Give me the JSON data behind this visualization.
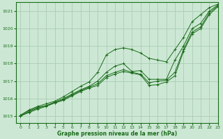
{
  "title": "Graphe pression niveau de la mer (hPa)",
  "bg_color": "#cce8d4",
  "grid_color": "#aaccb4",
  "line_color": "#1a6b1a",
  "xlim": [
    -0.5,
    23
  ],
  "ylim": [
    1014.6,
    1021.5
  ],
  "yticks": [
    1015,
    1016,
    1017,
    1018,
    1019,
    1020,
    1021
  ],
  "xticks": [
    0,
    1,
    2,
    3,
    4,
    5,
    6,
    7,
    8,
    9,
    10,
    11,
    12,
    13,
    14,
    15,
    16,
    17,
    18,
    19,
    20,
    21,
    22,
    23
  ],
  "series": {
    "line_max": {
      "x": [
        0,
        1,
        2,
        3,
        4,
        5,
        6,
        7,
        8,
        9,
        10,
        11,
        12,
        13,
        14,
        15,
        16,
        17,
        18,
        19,
        20,
        21,
        22,
        23
      ],
      "y": [
        1015.05,
        1015.35,
        1015.55,
        1015.7,
        1015.85,
        1016.1,
        1016.4,
        1016.7,
        1016.95,
        1017.5,
        1018.5,
        1018.8,
        1018.9,
        1018.8,
        1018.6,
        1018.3,
        1018.2,
        1018.1,
        1018.8,
        1019.5,
        1020.4,
        1020.8,
        1021.2,
        1021.4
      ]
    },
    "line_mid": {
      "x": [
        0,
        1,
        2,
        3,
        4,
        5,
        6,
        7,
        8,
        9,
        10,
        11,
        12,
        13,
        14,
        15,
        16,
        17,
        18,
        19,
        20,
        21,
        22,
        23
      ],
      "y": [
        1015.05,
        1015.3,
        1015.5,
        1015.6,
        1015.8,
        1016.0,
        1016.25,
        1016.5,
        1016.7,
        1017.0,
        1017.5,
        1017.85,
        1018.0,
        1017.55,
        1017.6,
        1017.1,
        1017.1,
        1017.1,
        1018.2,
        1019.0,
        1020.0,
        1020.3,
        1021.0,
        1021.35
      ]
    },
    "line_low1": {
      "x": [
        0,
        1,
        2,
        3,
        4,
        5,
        6,
        7,
        8,
        9,
        10,
        11,
        12,
        13,
        14,
        15,
        16,
        17,
        18,
        19,
        20,
        21,
        22,
        23
      ],
      "y": [
        1015.0,
        1015.25,
        1015.45,
        1015.6,
        1015.75,
        1015.95,
        1016.2,
        1016.45,
        1016.65,
        1016.85,
        1017.3,
        1017.5,
        1017.65,
        1017.5,
        1017.4,
        1016.9,
        1017.0,
        1017.05,
        1017.5,
        1018.8,
        1019.8,
        1020.1,
        1020.9,
        1021.3
      ]
    },
    "line_low2": {
      "x": [
        0,
        1,
        2,
        3,
        4,
        5,
        6,
        7,
        8,
        9,
        10,
        11,
        12,
        13,
        14,
        15,
        16,
        17,
        18,
        19,
        20,
        21,
        22,
        23
      ],
      "y": [
        1015.0,
        1015.2,
        1015.4,
        1015.55,
        1015.75,
        1015.9,
        1016.15,
        1016.4,
        1016.6,
        1016.75,
        1017.2,
        1017.4,
        1017.55,
        1017.45,
        1017.35,
        1016.75,
        1016.8,
        1016.95,
        1017.3,
        1018.7,
        1019.7,
        1020.0,
        1020.8,
        1021.25
      ]
    }
  }
}
